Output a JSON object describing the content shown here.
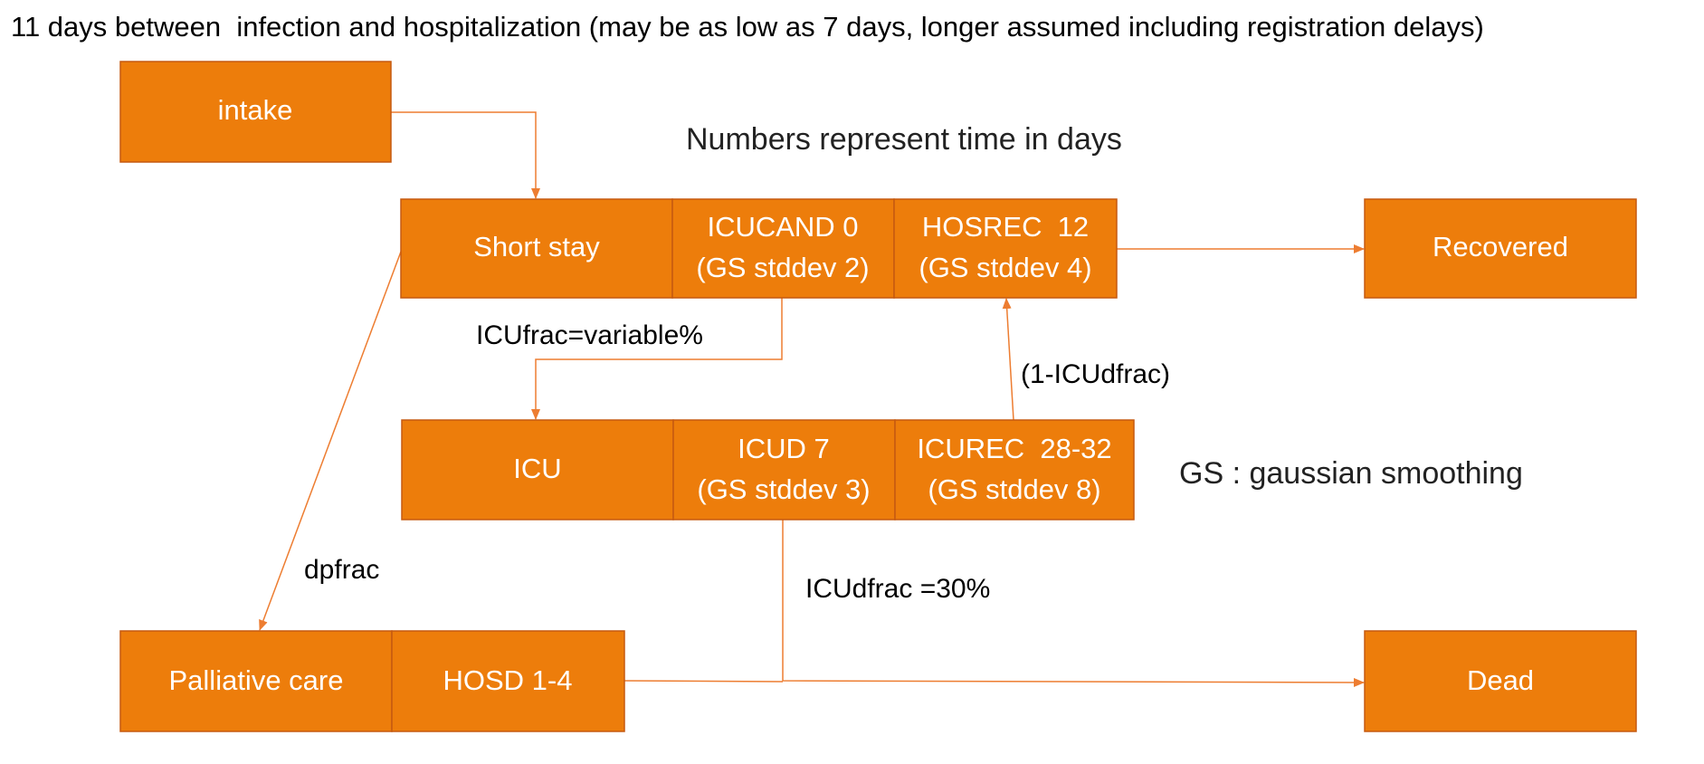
{
  "title": "11 days between  infection and hospitalization (may be as low as 7 days, longer assumed including registration delays)",
  "notes": {
    "units": "Numbers represent time in days",
    "gs": "GS : gaussian smoothing"
  },
  "nodes": {
    "intake": "intake",
    "short_stay": "Short stay",
    "icucand": [
      "ICUCAND 0",
      "(GS stddev 2)"
    ],
    "hosrec": [
      "HOSREC  12",
      "(GS stddev 4)"
    ],
    "recovered": "Recovered",
    "icu": "ICU",
    "icud": [
      "ICUD 7",
      "(GS stddev 3)"
    ],
    "icurec": [
      "ICUREC  28-32",
      "(GS stddev 8)"
    ],
    "palliative": "Palliative care",
    "hosd": "HOSD 1-4",
    "dead": "Dead"
  },
  "edges": {
    "icufrac": "ICUfrac=variable%",
    "one_minus_icudfrac": "(1-ICUdfrac)",
    "dpfrac": "dpfrac",
    "icudfrac": "ICUdfrac =30%"
  }
}
